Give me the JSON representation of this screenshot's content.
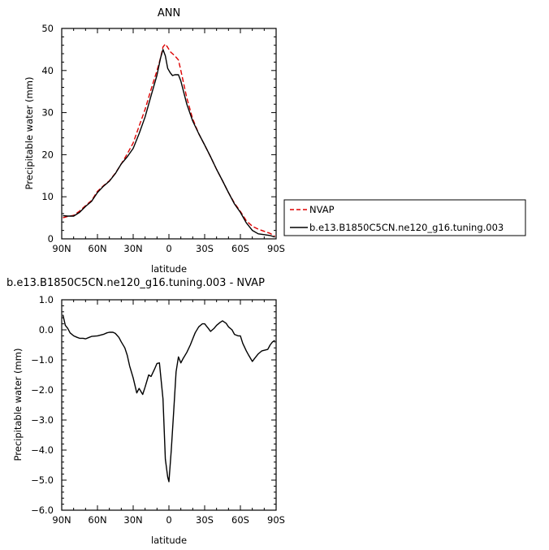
{
  "chart_data": [
    {
      "type": "line",
      "title": "ANN",
      "xlabel": "latitude",
      "ylabel": "Precipitable water  (mm)",
      "xlim": [
        90,
        -90
      ],
      "ylim": [
        0,
        50
      ],
      "x_ticks": [
        90,
        60,
        30,
        0,
        -30,
        -60,
        -90
      ],
      "x_tick_labels": [
        "90N",
        "60N",
        "30N",
        "0",
        "30S",
        "60S",
        "90S"
      ],
      "y_ticks": [
        0,
        10,
        20,
        30,
        40,
        50
      ],
      "y_tick_labels": [
        "0",
        "10",
        "20",
        "30",
        "40",
        "50"
      ],
      "grid": false,
      "legend_position": "right",
      "series": [
        {
          "name": "NVAP",
          "color": "#dd0000",
          "dash": "dashed",
          "x": [
            89,
            85,
            80,
            75,
            70,
            65,
            60,
            55,
            50,
            45,
            40,
            35,
            30,
            25,
            20,
            15,
            10,
            7,
            5,
            3,
            1,
            -1,
            -3,
            -5,
            -8,
            -10,
            -15,
            -20,
            -25,
            -30,
            -35,
            -40,
            -45,
            -50,
            -55,
            -60,
            -65,
            -70,
            -75,
            -80,
            -85,
            -89
          ],
          "y": [
            5.0,
            5.3,
            5.6,
            6.6,
            7.9,
            9.1,
            11.3,
            12.6,
            13.8,
            15.6,
            17.8,
            20.2,
            22.8,
            26.8,
            30.8,
            35.5,
            40.0,
            43.0,
            45.6,
            46.3,
            45.5,
            44.5,
            44.0,
            43.5,
            42.5,
            40.0,
            33.5,
            28.5,
            25.0,
            22.3,
            19.5,
            16.5,
            13.8,
            11.0,
            8.5,
            6.5,
            4.3,
            3.0,
            2.3,
            1.8,
            1.3,
            0.6
          ]
        },
        {
          "name": "b.e13.B1850C5CN.ne120_g16.tuning.003",
          "color": "#000000",
          "dash": "solid",
          "x": [
            89,
            85,
            80,
            75,
            70,
            65,
            60,
            55,
            50,
            45,
            40,
            35,
            30,
            25,
            20,
            15,
            10,
            7,
            5,
            3,
            1,
            -1,
            -3,
            -5,
            -8,
            -10,
            -15,
            -20,
            -25,
            -30,
            -35,
            -40,
            -45,
            -50,
            -55,
            -60,
            -65,
            -70,
            -75,
            -80,
            -85,
            -89
          ],
          "y": [
            5.5,
            5.4,
            5.4,
            6.3,
            7.7,
            8.9,
            11.0,
            12.5,
            13.7,
            15.5,
            17.8,
            19.5,
            21.5,
            25.0,
            29.0,
            34.0,
            38.9,
            43.0,
            45.0,
            43.5,
            40.5,
            39.5,
            38.8,
            39.0,
            39.0,
            37.5,
            32.0,
            28.0,
            25.0,
            22.3,
            19.5,
            16.5,
            13.8,
            11.0,
            8.3,
            6.3,
            3.8,
            2.0,
            1.2,
            1.0,
            0.8,
            0.4
          ]
        }
      ]
    },
    {
      "type": "line",
      "title": "b.e13.B1850C5CN.ne120_g16.tuning.003 - NVAP",
      "xlabel": "latitude",
      "ylabel": "Precipitable water  (mm)",
      "xlim": [
        90,
        -90
      ],
      "ylim": [
        -6.0,
        1.0
      ],
      "x_ticks": [
        90,
        60,
        30,
        0,
        -30,
        -60,
        -90
      ],
      "x_tick_labels": [
        "90N",
        "60N",
        "30N",
        "0",
        "30S",
        "60S",
        "90S"
      ],
      "y_ticks": [
        -6.0,
        -5.0,
        -4.0,
        -3.0,
        -2.0,
        -1.0,
        0.0,
        1.0
      ],
      "y_tick_labels": [
        "−6.0",
        "−5.0",
        "−4.0",
        "−3.0",
        "−2.0",
        "−1.0",
        "0.0",
        "1.0"
      ],
      "grid": false,
      "series": [
        {
          "color": "#000000",
          "dash": "solid",
          "x": [
            89,
            87,
            85,
            83,
            80,
            77,
            75,
            72,
            70,
            67,
            65,
            60,
            55,
            52,
            50,
            47,
            45,
            42,
            40,
            37,
            35,
            33,
            30,
            27,
            25,
            22,
            20,
            17,
            15,
            12,
            10,
            8,
            5,
            3,
            1,
            0,
            -2,
            -4,
            -6,
            -8,
            -10,
            -12,
            -15,
            -18,
            -20,
            -22,
            -25,
            -28,
            -30,
            -33,
            -35,
            -38,
            -40,
            -43,
            -45,
            -48,
            -50,
            -53,
            -55,
            -58,
            -60,
            -62,
            -65,
            -67,
            -70,
            -72,
            -75,
            -78,
            -80,
            -83,
            -85,
            -87,
            -89
          ],
          "y": [
            0.5,
            0.15,
            0.05,
            -0.1,
            -0.2,
            -0.25,
            -0.28,
            -0.28,
            -0.3,
            -0.25,
            -0.22,
            -0.2,
            -0.15,
            -0.1,
            -0.08,
            -0.08,
            -0.12,
            -0.25,
            -0.4,
            -0.6,
            -0.85,
            -1.2,
            -1.6,
            -2.1,
            -1.95,
            -2.15,
            -1.9,
            -1.5,
            -1.55,
            -1.3,
            -1.12,
            -1.1,
            -2.3,
            -4.3,
            -4.9,
            -5.05,
            -4.0,
            -2.7,
            -1.4,
            -0.9,
            -1.1,
            -0.95,
            -0.75,
            -0.5,
            -0.3,
            -0.1,
            0.1,
            0.2,
            0.2,
            0.05,
            -0.05,
            0.05,
            0.15,
            0.25,
            0.3,
            0.22,
            0.1,
            0.0,
            -0.15,
            -0.2,
            -0.2,
            -0.45,
            -0.7,
            -0.85,
            -1.05,
            -0.95,
            -0.8,
            -0.7,
            -0.68,
            -0.65,
            -0.5,
            -0.4,
            -0.35
          ]
        }
      ]
    }
  ]
}
